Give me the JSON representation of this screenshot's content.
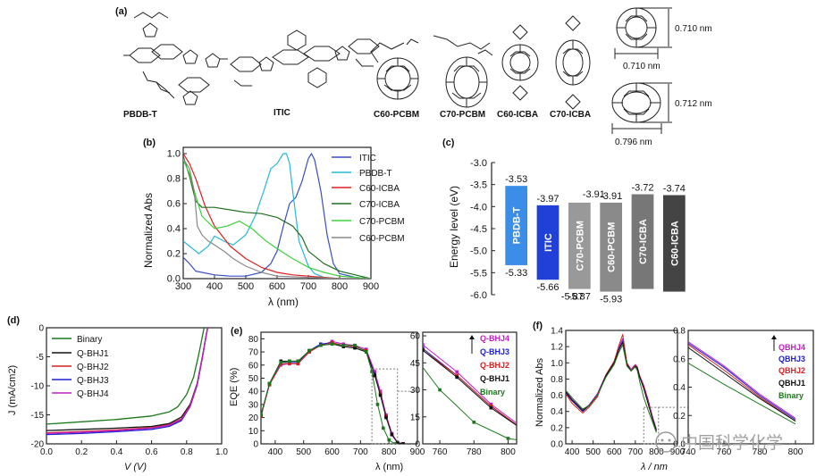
{
  "panel_a": {
    "label": "(a)",
    "molecules": [
      "PBDB-T",
      "ITIC",
      "C60-PCBM",
      "C70-PCBM",
      "C60-ICBA",
      "C70-ICBA"
    ],
    "sizes": [
      "0.710 nm",
      "0.710 nm",
      "0.712 nm",
      "0.796 nm"
    ]
  },
  "panel_b": {
    "label": "(b)",
    "xlabel": "λ (nm)",
    "ylabel": "Normalized Abs",
    "legend": [
      "ITIC",
      "PBDB-T",
      "C60-ICBA",
      "C70-ICBA",
      "C70-PCBM",
      "C60-PCBM"
    ]
  },
  "panel_c": {
    "label": "(c)",
    "ylabel": "Energy level (eV)"
  },
  "panel_d": {
    "label": "(d)",
    "xlabel": "V (V)",
    "ylabel": "J (mA/cm2)",
    "legend": [
      "Binary",
      "Q-BHJ1",
      "Q-BHJ2",
      "Q-BHJ3",
      "Q-BHJ4"
    ]
  },
  "panel_e": {
    "label": "(e)",
    "xlabel": "λ (nm)",
    "ylabel": "EQE (%)",
    "legend": [
      "Q-BHJ4",
      "Q-BHJ3",
      "Q-BHJ2",
      "Q-BHJ1",
      "Binary"
    ]
  },
  "panel_f": {
    "label": "(f)",
    "xlabel": "λ / nm",
    "ylabel": "Normalized Abs",
    "legend": [
      "QBHJ4",
      "QBHJ3",
      "QBHJ2",
      "QBHJ1",
      "Binary"
    ]
  },
  "watermark": "中国科学化学",
  "chart_data": [
    {
      "type": "line",
      "id": "b",
      "title": "",
      "xlabel": "λ (nm)",
      "ylabel": "Normalized Abs",
      "xlim": [
        300,
        900
      ],
      "ylim": [
        0,
        1.05
      ],
      "xticks": [
        300,
        400,
        500,
        600,
        700,
        800,
        900
      ],
      "yticks": [
        0.0,
        0.2,
        0.4,
        0.6,
        0.8,
        1.0
      ],
      "series": [
        {
          "name": "ITIC",
          "color": "#3a4fc1",
          "x": [
            300,
            320,
            340,
            360,
            400,
            450,
            500,
            550,
            580,
            600,
            620,
            640,
            660,
            680,
            700,
            710,
            720,
            740,
            760,
            780,
            800,
            850,
            900
          ],
          "y": [
            0.17,
            0.12,
            0.06,
            0.05,
            0.03,
            0.02,
            0.02,
            0.05,
            0.12,
            0.22,
            0.42,
            0.6,
            0.65,
            0.78,
            0.96,
            1.0,
            0.95,
            0.7,
            0.35,
            0.12,
            0.04,
            0.01,
            0.0
          ]
        },
        {
          "name": "PBDB-T",
          "color": "#27b8d6",
          "x": [
            300,
            320,
            350,
            380,
            400,
            430,
            460,
            500,
            530,
            560,
            580,
            600,
            620,
            630,
            640,
            650,
            670,
            700,
            720,
            750,
            800,
            900
          ],
          "y": [
            0.3,
            0.26,
            0.2,
            0.26,
            0.34,
            0.3,
            0.27,
            0.35,
            0.5,
            0.72,
            0.88,
            0.92,
            1.0,
            1.0,
            0.92,
            0.7,
            0.3,
            0.1,
            0.04,
            0.01,
            0.0,
            0.0
          ]
        },
        {
          "name": "C60-ICBA",
          "color": "#e01e1e",
          "x": [
            300,
            320,
            340,
            370,
            400,
            450,
            500,
            550,
            600,
            650,
            700,
            750,
            800,
            900
          ],
          "y": [
            1.0,
            0.92,
            0.8,
            0.58,
            0.42,
            0.26,
            0.16,
            0.09,
            0.05,
            0.03,
            0.02,
            0.01,
            0.0,
            0.0
          ]
        },
        {
          "name": "C70-ICBA",
          "color": "#1e6e1e",
          "x": [
            300,
            320,
            340,
            360,
            400,
            450,
            500,
            550,
            600,
            650,
            680,
            700,
            750,
            800,
            850,
            900
          ],
          "y": [
            0.98,
            0.82,
            0.62,
            0.57,
            0.57,
            0.55,
            0.53,
            0.52,
            0.49,
            0.42,
            0.33,
            0.22,
            0.12,
            0.06,
            0.03,
            0.0
          ]
        },
        {
          "name": "C70-PCBM",
          "color": "#3bd23b",
          "x": [
            300,
            320,
            340,
            360,
            400,
            440,
            480,
            520,
            560,
            600,
            650,
            700,
            750,
            800,
            850,
            900
          ],
          "y": [
            0.95,
            0.84,
            0.66,
            0.5,
            0.4,
            0.42,
            0.46,
            0.4,
            0.31,
            0.24,
            0.16,
            0.09,
            0.05,
            0.02,
            0.01,
            0.0
          ]
        },
        {
          "name": "C60-PCBM",
          "color": "#888888",
          "x": [
            300,
            320,
            335,
            345,
            360,
            380,
            400,
            430,
            460,
            500,
            550,
            600,
            700,
            800,
            900
          ],
          "y": [
            0.96,
            0.88,
            0.7,
            0.42,
            0.35,
            0.3,
            0.27,
            0.22,
            0.16,
            0.1,
            0.05,
            0.02,
            0.01,
            0.0,
            0.0
          ]
        }
      ]
    },
    {
      "type": "bar",
      "id": "c",
      "ylabel": "Energy level (eV)",
      "ylim": [
        -6.0,
        -3.0
      ],
      "yticks": [
        -3.0,
        -3.5,
        -4.0,
        -4.5,
        -5.0,
        -5.5,
        -6.0
      ],
      "categories": [
        "PBDB-T",
        "ITIC",
        "C70-PCBM",
        "C60-PCBM",
        "C70-ICBA",
        "C60-ICBA"
      ],
      "lumo": [
        -3.53,
        -3.97,
        -3.91,
        -3.91,
        -3.72,
        -3.74
      ],
      "homo": [
        -5.33,
        -5.66,
        -5.87,
        -5.93,
        -5.87,
        -5.93
      ],
      "top_labels": [
        "-3.53",
        "-3.97",
        "",
        "-3.91",
        "-3.72",
        "-3.74"
      ],
      "bottom_labels": [
        "-5.33",
        "-5.66",
        "-5.87",
        "-5.93",
        "",
        ""
      ],
      "colors": [
        "#3b8ee8",
        "#2040d8",
        "#999999",
        "#8a8a8a",
        "#777777",
        "#444444"
      ]
    },
    {
      "type": "line",
      "id": "d",
      "xlabel": "V (V)",
      "ylabel": "J (mA/cm2)",
      "xlim": [
        0.0,
        1.0
      ],
      "ylim": [
        -20,
        0
      ],
      "xticks": [
        0.0,
        0.2,
        0.4,
        0.6,
        0.8,
        1.0
      ],
      "yticks": [
        0,
        -5,
        -10,
        -15,
        -20
      ],
      "series": [
        {
          "name": "Binary",
          "color": "#1a7a1a",
          "x": [
            0,
            0.2,
            0.4,
            0.6,
            0.7,
            0.75,
            0.8,
            0.84,
            0.87,
            0.89,
            0.9
          ],
          "y": [
            -16.6,
            -16.2,
            -15.8,
            -15.2,
            -14.5,
            -13.6,
            -11.5,
            -8.5,
            -4.5,
            -1.5,
            0
          ]
        },
        {
          "name": "Q-BHJ1",
          "color": "#111111",
          "x": [
            0,
            0.2,
            0.4,
            0.6,
            0.7,
            0.77,
            0.82,
            0.86,
            0.89,
            0.91,
            0.92
          ],
          "y": [
            -17.7,
            -17.5,
            -17.3,
            -17.0,
            -16.5,
            -15.4,
            -13.2,
            -9.6,
            -5.0,
            -1.5,
            0
          ]
        },
        {
          "name": "Q-BHJ2",
          "color": "#d42020",
          "x": [
            0,
            0.2,
            0.4,
            0.6,
            0.7,
            0.77,
            0.82,
            0.86,
            0.89,
            0.91,
            0.92
          ],
          "y": [
            -18.1,
            -17.9,
            -17.6,
            -17.2,
            -16.7,
            -15.7,
            -13.4,
            -9.8,
            -5.2,
            -1.6,
            0
          ]
        },
        {
          "name": "Q-BHJ3",
          "color": "#2020d0",
          "x": [
            0,
            0.2,
            0.4,
            0.6,
            0.7,
            0.77,
            0.82,
            0.86,
            0.89,
            0.91,
            0.92
          ],
          "y": [
            -18.4,
            -18.2,
            -17.9,
            -17.5,
            -17.0,
            -16.0,
            -13.6,
            -9.9,
            -5.2,
            -1.6,
            0
          ]
        },
        {
          "name": "Q-BHJ4",
          "color": "#c020c0",
          "x": [
            0,
            0.2,
            0.4,
            0.6,
            0.7,
            0.77,
            0.82,
            0.86,
            0.89,
            0.91,
            0.92
          ],
          "y": [
            -18.2,
            -18.0,
            -17.7,
            -17.3,
            -16.8,
            -15.8,
            -13.5,
            -9.8,
            -5.1,
            -1.6,
            0
          ]
        }
      ]
    },
    {
      "type": "line",
      "id": "e",
      "xlabel": "λ (nm)",
      "ylabel": "EQE (%)",
      "xlim": [
        350,
        900
      ],
      "ylim": [
        0,
        85
      ],
      "xticks": [
        400,
        500,
        600,
        700,
        800,
        900
      ],
      "yticks": [
        0,
        10,
        20,
        30,
        40,
        50,
        60,
        70,
        80
      ],
      "inset": {
        "xlim": [
          750,
          805
        ],
        "ylim": [
          0,
          62
        ],
        "xticks": [
          760,
          780,
          800
        ],
        "yticks": [
          0,
          15,
          30,
          45,
          60
        ]
      },
      "series": [
        {
          "name": "Q-BHJ4",
          "color": "#c020c0",
          "x": [
            350,
            380,
            420,
            450,
            480,
            520,
            560,
            600,
            640,
            680,
            720,
            750,
            770,
            790,
            810,
            830,
            850
          ],
          "y": [
            21,
            45,
            60,
            61,
            61,
            70,
            75,
            78,
            76,
            75,
            72,
            55,
            40,
            22,
            8,
            1,
            0
          ]
        },
        {
          "name": "Q-BHJ3",
          "color": "#2020d0",
          "x": [
            350,
            380,
            420,
            450,
            480,
            520,
            560,
            600,
            640,
            680,
            720,
            750,
            770,
            790,
            810,
            830,
            850
          ],
          "y": [
            21,
            46,
            62,
            62,
            62,
            71,
            76,
            77,
            75,
            74,
            71,
            53,
            38,
            21,
            7,
            1,
            0
          ]
        },
        {
          "name": "Q-BHJ2",
          "color": "#d42020",
          "x": [
            350,
            380,
            420,
            450,
            480,
            520,
            560,
            600,
            640,
            680,
            720,
            750,
            770,
            790,
            810,
            830,
            850
          ],
          "y": [
            21,
            45,
            61,
            61,
            61,
            70,
            75,
            77,
            75,
            74,
            71,
            52,
            38,
            21,
            7,
            1,
            0
          ]
        },
        {
          "name": "Q-BHJ1",
          "color": "#111111",
          "x": [
            350,
            380,
            420,
            450,
            480,
            520,
            560,
            600,
            640,
            680,
            720,
            750,
            770,
            790,
            810,
            830,
            850
          ],
          "y": [
            22,
            46,
            63,
            63,
            63,
            71,
            75,
            76,
            74,
            73,
            70,
            52,
            37,
            20,
            7,
            1,
            0
          ]
        },
        {
          "name": "Binary",
          "color": "#1a7a1a",
          "x": [
            350,
            380,
            420,
            450,
            480,
            520,
            560,
            600,
            640,
            680,
            720,
            740,
            760,
            780,
            800,
            820
          ],
          "y": [
            22,
            46,
            62,
            63,
            63,
            71,
            75,
            76,
            75,
            75,
            70,
            55,
            30,
            12,
            3,
            0
          ]
        }
      ]
    },
    {
      "type": "line",
      "id": "f",
      "xlabel": "λ / nm",
      "ylabel": "Normalized Abs",
      "xlim": [
        370,
        900
      ],
      "ylim": [
        0,
        1.4
      ],
      "xticks": [
        400,
        500,
        600,
        700,
        800,
        900
      ],
      "yticks": [
        0.0,
        0.2,
        0.4,
        0.6,
        0.8,
        1.0,
        1.2,
        1.4
      ],
      "inset": {
        "xlim": [
          740,
          810
        ],
        "ylim": [
          0,
          0.8
        ],
        "xticks": [
          740,
          760,
          780,
          800
        ],
        "yticks": [
          0.0,
          0.2,
          0.4,
          0.6,
          0.8
        ]
      },
      "series": [
        {
          "name": "QBHJ4",
          "color": "#c020c0",
          "x": [
            370,
            400,
            450,
            480,
            520,
            560,
            600,
            620,
            640,
            660,
            680,
            700,
            710,
            720,
            740,
            760,
            780,
            800
          ],
          "y": [
            0.65,
            0.55,
            0.42,
            0.48,
            0.62,
            0.85,
            1.02,
            1.18,
            1.3,
            1.0,
            0.92,
            0.98,
            0.95,
            0.85,
            0.72,
            0.55,
            0.35,
            0.18
          ]
        },
        {
          "name": "QBHJ3",
          "color": "#2020d0",
          "x": [
            370,
            400,
            450,
            480,
            520,
            560,
            600,
            620,
            640,
            660,
            680,
            700,
            710,
            720,
            740,
            760,
            780,
            800
          ],
          "y": [
            0.63,
            0.53,
            0.4,
            0.47,
            0.6,
            0.84,
            1.0,
            1.16,
            1.27,
            0.98,
            0.9,
            0.96,
            0.93,
            0.83,
            0.71,
            0.54,
            0.34,
            0.17
          ]
        },
        {
          "name": "QBHJ2",
          "color": "#d42020",
          "x": [
            370,
            400,
            450,
            480,
            520,
            560,
            600,
            620,
            640,
            660,
            680,
            700,
            710,
            720,
            740,
            760,
            780,
            800
          ],
          "y": [
            0.62,
            0.5,
            0.38,
            0.45,
            0.58,
            0.85,
            1.02,
            1.2,
            1.35,
            1.0,
            0.9,
            0.97,
            0.94,
            0.84,
            0.7,
            0.52,
            0.33,
            0.16
          ]
        },
        {
          "name": "QBHJ1",
          "color": "#111111",
          "x": [
            370,
            400,
            450,
            480,
            520,
            560,
            600,
            620,
            640,
            660,
            680,
            700,
            710,
            720,
            740,
            760,
            780,
            800
          ],
          "y": [
            0.64,
            0.54,
            0.41,
            0.47,
            0.6,
            0.84,
            1.0,
            1.15,
            1.25,
            0.98,
            0.9,
            0.96,
            0.93,
            0.83,
            0.68,
            0.5,
            0.32,
            0.16
          ]
        },
        {
          "name": "Binary",
          "color": "#1a7a1a",
          "x": [
            370,
            400,
            450,
            480,
            520,
            560,
            600,
            620,
            640,
            660,
            680,
            700,
            710,
            720,
            740,
            760,
            780,
            800
          ],
          "y": [
            0.66,
            0.57,
            0.43,
            0.47,
            0.6,
            0.82,
            0.98,
            1.12,
            1.22,
            0.96,
            0.9,
            0.95,
            0.9,
            0.78,
            0.57,
            0.42,
            0.28,
            0.14
          ]
        }
      ]
    }
  ]
}
